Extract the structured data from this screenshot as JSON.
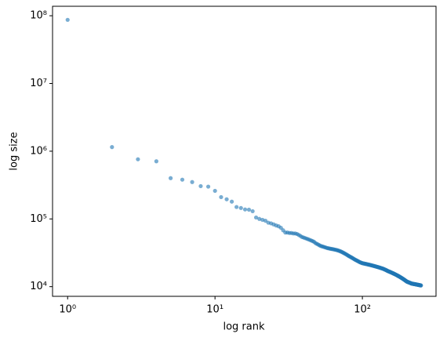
{
  "chart_data": {
    "type": "scatter",
    "xlabel": "log rank",
    "ylabel": "log size",
    "xscale": "log",
    "yscale": "log",
    "color": "#1f77b4",
    "xlim": [
      0.79,
      316
    ],
    "ylim": [
      7200,
      138000000
    ],
    "xticks": [
      {
        "value": 1,
        "label": "10⁰"
      },
      {
        "value": 10,
        "label": "10¹"
      },
      {
        "value": 100,
        "label": "10²"
      }
    ],
    "yticks": [
      {
        "value": 10000,
        "label": "10⁴"
      },
      {
        "value": 100000,
        "label": "10⁵"
      },
      {
        "value": 1000000,
        "label": "10⁶"
      },
      {
        "value": 10000000,
        "label": "10⁷"
      },
      {
        "value": 100000000,
        "label": "10⁸"
      }
    ],
    "x": [
      1,
      2,
      3,
      4,
      5,
      6,
      7,
      8,
      9,
      10,
      11,
      12,
      13,
      14,
      15,
      16,
      17,
      18,
      19,
      20,
      21,
      22,
      23,
      24,
      25,
      26,
      27,
      28,
      29,
      30,
      31,
      32,
      33,
      34,
      35,
      36,
      37,
      38,
      39,
      40,
      41,
      42,
      43,
      44,
      45,
      46,
      47,
      48,
      49,
      50,
      51,
      52,
      53,
      54,
      55,
      56,
      57,
      58,
      59,
      60,
      61,
      62,
      63,
      64,
      65,
      66,
      67,
      68,
      69,
      70,
      71,
      72,
      73,
      74,
      75,
      76,
      77,
      78,
      79,
      80,
      81,
      82,
      83,
      84,
      85,
      86,
      87,
      88,
      89,
      90,
      91,
      92,
      93,
      94,
      95,
      96,
      97,
      98,
      99,
      100,
      101,
      102,
      103,
      104,
      105,
      106,
      107,
      108,
      109,
      110,
      111,
      112,
      113,
      114,
      115,
      116,
      117,
      118,
      119,
      120,
      121,
      122,
      123,
      124,
      125,
      126,
      127,
      128,
      129,
      130,
      131,
      132,
      133,
      134,
      135,
      136,
      137,
      138,
      139,
      140,
      141,
      142,
      143,
      144,
      145,
      146,
      147,
      148,
      149,
      150,
      151,
      152,
      153,
      154,
      155,
      156,
      157,
      158,
      159,
      160,
      161,
      162,
      163,
      164,
      165,
      166,
      167,
      168,
      169,
      170,
      171,
      172,
      173,
      174,
      175,
      176,
      177,
      178,
      179,
      180,
      181,
      182,
      183,
      184,
      185,
      186,
      187,
      188,
      189,
      190,
      191,
      192,
      193,
      194,
      195,
      196,
      197,
      198,
      199,
      200,
      201,
      202,
      203,
      204,
      205,
      206,
      207,
      208,
      209,
      210,
      211,
      212,
      213,
      214,
      215,
      216,
      217,
      218,
      219,
      220,
      221,
      222,
      223,
      224,
      225,
      226,
      227,
      228,
      229,
      230,
      231,
      232,
      233,
      234,
      235,
      236,
      237,
      238,
      239,
      240,
      241,
      242,
      243,
      244,
      245,
      246,
      247,
      248,
      249,
      250
    ],
    "values": [
      87000000,
      1150000,
      760000,
      710000,
      400000,
      380000,
      350000,
      305000,
      300000,
      260000,
      210000,
      195000,
      180000,
      150000,
      145000,
      138000,
      137000,
      130000,
      105000,
      100000,
      97000,
      94000,
      88000,
      86000,
      83000,
      80000,
      78000,
      74000,
      68000,
      63000,
      63000,
      62000,
      62000,
      61000,
      61000,
      60000,
      58000,
      56000,
      54000,
      53000,
      52000,
      51000,
      50000,
      49000,
      48000,
      47000,
      46000,
      44000,
      43000,
      42000,
      41000,
      40000,
      39500,
      39000,
      38500,
      38000,
      37500,
      37000,
      36800,
      36500,
      36200,
      36000,
      35800,
      35500,
      35200,
      35000,
      34700,
      34400,
      34000,
      33600,
      33200,
      32800,
      32300,
      31800,
      31300,
      30800,
      30300,
      29800,
      29300,
      28800,
      28300,
      27900,
      27500,
      27100,
      26700,
      26300,
      25900,
      25500,
      25100,
      24800,
      24500,
      24200,
      23900,
      23600,
      23300,
      23000,
      22800,
      22600,
      22400,
      22200,
      22100,
      22000,
      21900,
      21800,
      21700,
      21600,
      21500,
      21400,
      21300,
      21200,
      21100,
      21000,
      20900,
      20800,
      20700,
      20600,
      20500,
      20400,
      20300,
      20200,
      20100,
      20000,
      19900,
      19800,
      19700,
      19600,
      19500,
      19400,
      19300,
      19200,
      19100,
      19000,
      18900,
      18800,
      18700,
      18600,
      18500,
      18400,
      18300,
      18200,
      18000,
      17900,
      17800,
      17700,
      17500,
      17400,
      17300,
      17100,
      17000,
      16900,
      16800,
      16700,
      16600,
      16500,
      16400,
      16300,
      16200,
      16100,
      16000,
      15900,
      15800,
      15700,
      15600,
      15500,
      15400,
      15300,
      15200,
      15100,
      15000,
      14900,
      14800,
      14700,
      14600,
      14500,
      14400,
      14300,
      14200,
      14100,
      14000,
      13900,
      13800,
      13700,
      13600,
      13500,
      13400,
      13300,
      13200,
      13100,
      13000,
      12900,
      12800,
      12700,
      12600,
      12500,
      12400,
      12300,
      12200,
      12100,
      12000,
      11900,
      11850,
      11800,
      11750,
      11700,
      11650,
      11600,
      11550,
      11500,
      11450,
      11400,
      11350,
      11300,
      11250,
      11200,
      11150,
      11100,
      11080,
      11060,
      11040,
      11020,
      11000,
      10980,
      10960,
      10940,
      10920,
      10900,
      10880,
      10860,
      10840,
      10820,
      10800,
      10780,
      10760,
      10740,
      10720,
      10700,
      10680,
      10660,
      10640,
      10620,
      10600,
      10580,
      10560,
      10540,
      10520,
      10500,
      10480,
      10460,
      10440,
      10420
    ]
  }
}
